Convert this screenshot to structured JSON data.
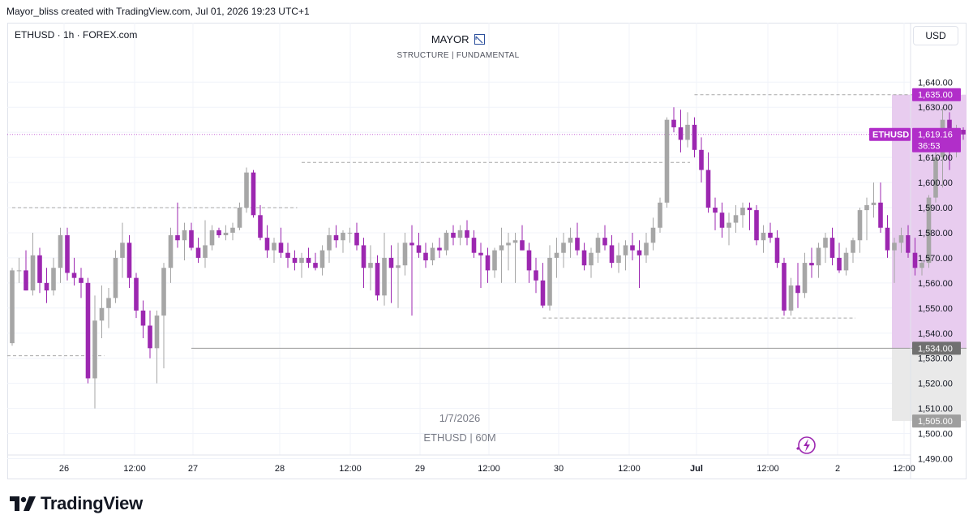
{
  "header": {
    "credit": "Mayor_bliss created with TradingView.com, Jul 01, 2026 19:23 UTC+1"
  },
  "symbol_info": "ETHUSD · 1h · FOREX.com",
  "currency_button": "USD",
  "indicator": {
    "title": "MAYOR",
    "subtitle": "STRUCTURE  |  FUNDAMENTAL"
  },
  "watermark": {
    "date": "1/7/2026",
    "symbol": "ETHUSD | 60M"
  },
  "logo_text": "TradingView",
  "colors": {
    "bull": "#a6a6a6",
    "bear": "#9c27b0",
    "zone_pink": "#e7c9ee",
    "zone_gray": "#e8e8e8",
    "accent": "#b12ec9",
    "dark_tag": "#707070"
  },
  "chart_data": {
    "type": "candlestick",
    "title": "",
    "ylim": [
      1485,
      1645
    ],
    "y_ticks": [
      "1,490.00",
      "1,500.00",
      "1,510.00",
      "1,520.00",
      "1,530.00",
      "1,540.00",
      "1,550.00",
      "1,560.00",
      "1,570.00",
      "1,580.00",
      "1,590.00",
      "1,600.00",
      "1,610.00",
      "1,620.00",
      "1,630.00",
      "1,640.00"
    ],
    "x_ticks": [
      "26",
      "12:00",
      "27",
      "28",
      "12:00",
      "29",
      "12:00",
      "30",
      "12:00",
      "Jul",
      "12:00",
      "2",
      "12:00"
    ],
    "last_price": {
      "label": "ETHUSD",
      "value": "1,619.16",
      "countdown": "36:53",
      "price": 1619.16
    },
    "price_tags": [
      {
        "value": "1,635.00",
        "price": 1635,
        "style": "accent"
      },
      {
        "value": "1,534.00",
        "price": 1534,
        "style": "dark"
      },
      {
        "value": "1,505.00",
        "price": 1505,
        "style": "gray"
      }
    ],
    "zones": [
      {
        "name": "premium-zone",
        "start_index": 128,
        "end_index": 141,
        "top": 1635,
        "bottom": 1534
      },
      {
        "name": "discount-zone",
        "start_index": 128,
        "end_index": 141,
        "top": 1534,
        "bottom": 1505
      }
    ],
    "levels": [
      {
        "name": "level-1531",
        "price": 1531,
        "start_index": -1,
        "end_index": 13,
        "style": "dashed"
      },
      {
        "name": "level-1590",
        "price": 1590,
        "start_index": 0,
        "end_index": 41,
        "style": "dashed"
      },
      {
        "name": "level-1608",
        "price": 1608,
        "start_index": 42,
        "end_index": 98,
        "style": "dashed"
      },
      {
        "name": "level-1546",
        "price": 1546,
        "start_index": 77,
        "end_index": 122,
        "style": "dashed"
      },
      {
        "name": "level-1635",
        "price": 1635,
        "start_index": 99,
        "end_index": 135,
        "style": "dashed"
      },
      {
        "name": "level-1534",
        "price": 1534,
        "start_index": 26,
        "end_index": 141,
        "style": "solid"
      }
    ],
    "candles": [
      [
        1536,
        1566,
        1535,
        1565
      ],
      [
        1565,
        1570,
        1560,
        1565
      ],
      [
        1565,
        1573,
        1557,
        1557
      ],
      [
        1557,
        1580,
        1555,
        1571
      ],
      [
        1571,
        1574,
        1556,
        1560
      ],
      [
        1560,
        1566,
        1552,
        1557
      ],
      [
        1557,
        1570,
        1555,
        1566
      ],
      [
        1566,
        1582,
        1560,
        1579
      ],
      [
        1579,
        1582,
        1561,
        1564
      ],
      [
        1564,
        1570,
        1559,
        1562
      ],
      [
        1562,
        1566,
        1554,
        1560
      ],
      [
        1560,
        1562,
        1520,
        1522
      ],
      [
        1522,
        1555,
        1510,
        1545
      ],
      [
        1545,
        1559,
        1538,
        1550
      ],
      [
        1550,
        1558,
        1542,
        1554
      ],
      [
        1554,
        1573,
        1552,
        1570
      ],
      [
        1570,
        1584,
        1562,
        1576
      ],
      [
        1576,
        1579,
        1558,
        1562
      ],
      [
        1562,
        1564,
        1546,
        1549
      ],
      [
        1549,
        1553,
        1538,
        1543
      ],
      [
        1543,
        1549,
        1530,
        1534
      ],
      [
        1534,
        1549,
        1520,
        1547
      ],
      [
        1547,
        1568,
        1526,
        1566
      ],
      [
        1566,
        1582,
        1560,
        1579
      ],
      [
        1579,
        1592,
        1574,
        1577
      ],
      [
        1577,
        1584,
        1569,
        1581
      ],
      [
        1581,
        1584,
        1573,
        1574
      ],
      [
        1574,
        1578,
        1568,
        1570
      ],
      [
        1570,
        1585,
        1566,
        1575
      ],
      [
        1575,
        1583,
        1573,
        1581
      ],
      [
        1581,
        1582,
        1578,
        1579
      ],
      [
        1579,
        1583,
        1577,
        1580
      ],
      [
        1580,
        1584,
        1577,
        1582
      ],
      [
        1582,
        1592,
        1581,
        1590
      ],
      [
        1590,
        1606,
        1588,
        1604
      ],
      [
        1604,
        1605,
        1586,
        1587
      ],
      [
        1587,
        1591,
        1577,
        1578
      ],
      [
        1578,
        1583,
        1570,
        1573
      ],
      [
        1573,
        1578,
        1568,
        1576
      ],
      [
        1576,
        1582,
        1570,
        1572
      ],
      [
        1572,
        1576,
        1566,
        1570
      ],
      [
        1570,
        1573,
        1565,
        1568
      ],
      [
        1568,
        1572,
        1562,
        1570
      ],
      [
        1570,
        1574,
        1566,
        1568
      ],
      [
        1568,
        1572,
        1565,
        1566
      ],
      [
        1566,
        1575,
        1563,
        1573
      ],
      [
        1573,
        1582,
        1568,
        1579
      ],
      [
        1579,
        1583,
        1574,
        1577
      ],
      [
        1577,
        1581,
        1572,
        1580
      ],
      [
        1580,
        1582,
        1576,
        1580
      ],
      [
        1580,
        1584,
        1573,
        1575
      ],
      [
        1575,
        1578,
        1558,
        1566
      ],
      [
        1566,
        1575,
        1557,
        1568
      ],
      [
        1568,
        1571,
        1553,
        1555
      ],
      [
        1555,
        1580,
        1551,
        1570
      ],
      [
        1570,
        1575,
        1552,
        1566
      ],
      [
        1566,
        1576,
        1550,
        1567
      ],
      [
        1567,
        1580,
        1563,
        1576
      ],
      [
        1576,
        1583,
        1547,
        1575
      ],
      [
        1575,
        1580,
        1570,
        1572
      ],
      [
        1572,
        1576,
        1566,
        1569
      ],
      [
        1569,
        1576,
        1567,
        1574
      ],
      [
        1574,
        1578,
        1570,
        1573
      ],
      [
        1573,
        1581,
        1571,
        1580
      ],
      [
        1580,
        1583,
        1575,
        1578
      ],
      [
        1578,
        1583,
        1575,
        1581
      ],
      [
        1581,
        1585,
        1575,
        1578
      ],
      [
        1578,
        1581,
        1570,
        1572
      ],
      [
        1572,
        1576,
        1558,
        1571
      ],
      [
        1571,
        1574,
        1560,
        1565
      ],
      [
        1565,
        1574,
        1562,
        1573
      ],
      [
        1573,
        1582,
        1560,
        1575
      ],
      [
        1575,
        1580,
        1565,
        1576
      ],
      [
        1576,
        1580,
        1560,
        1577
      ],
      [
        1577,
        1583,
        1573,
        1573
      ],
      [
        1573,
        1576,
        1560,
        1565
      ],
      [
        1565,
        1570,
        1556,
        1561
      ],
      [
        1561,
        1568,
        1550,
        1551
      ],
      [
        1551,
        1575,
        1549,
        1570
      ],
      [
        1570,
        1578,
        1562,
        1572
      ],
      [
        1572,
        1580,
        1566,
        1576
      ],
      [
        1576,
        1582,
        1570,
        1578
      ],
      [
        1578,
        1584,
        1571,
        1573
      ],
      [
        1573,
        1576,
        1565,
        1567
      ],
      [
        1567,
        1574,
        1562,
        1572
      ],
      [
        1572,
        1580,
        1568,
        1578
      ],
      [
        1578,
        1583,
        1573,
        1575
      ],
      [
        1575,
        1579,
        1566,
        1568
      ],
      [
        1568,
        1576,
        1564,
        1571
      ],
      [
        1571,
        1577,
        1565,
        1575
      ],
      [
        1575,
        1580,
        1569,
        1573
      ],
      [
        1573,
        1577,
        1558,
        1571
      ],
      [
        1571,
        1580,
        1568,
        1576
      ],
      [
        1576,
        1586,
        1573,
        1582
      ],
      [
        1582,
        1594,
        1580,
        1592
      ],
      [
        1592,
        1626,
        1590,
        1625
      ],
      [
        1625,
        1630,
        1620,
        1622
      ],
      [
        1622,
        1629,
        1612,
        1617
      ],
      [
        1617,
        1628,
        1614,
        1623
      ],
      [
        1623,
        1626,
        1610,
        1613
      ],
      [
        1613,
        1618,
        1600,
        1605
      ],
      [
        1605,
        1612,
        1588,
        1590
      ],
      [
        1590,
        1594,
        1581,
        1588
      ],
      [
        1588,
        1592,
        1578,
        1582
      ],
      [
        1582,
        1588,
        1575,
        1584
      ],
      [
        1584,
        1591,
        1580,
        1587
      ],
      [
        1587,
        1592,
        1582,
        1590
      ],
      [
        1590,
        1592,
        1581,
        1589
      ],
      [
        1589,
        1591,
        1575,
        1577
      ],
      [
        1577,
        1583,
        1572,
        1580
      ],
      [
        1580,
        1584,
        1576,
        1578
      ],
      [
        1578,
        1581,
        1566,
        1568
      ],
      [
        1568,
        1570,
        1547,
        1549
      ],
      [
        1549,
        1562,
        1547,
        1559
      ],
      [
        1559,
        1568,
        1550,
        1556
      ],
      [
        1556,
        1572,
        1554,
        1568
      ],
      [
        1568,
        1574,
        1562,
        1567
      ],
      [
        1567,
        1576,
        1562,
        1574
      ],
      [
        1574,
        1580,
        1568,
        1578
      ],
      [
        1578,
        1582,
        1567,
        1570
      ],
      [
        1570,
        1576,
        1564,
        1565
      ],
      [
        1565,
        1574,
        1563,
        1572
      ],
      [
        1572,
        1578,
        1568,
        1577
      ],
      [
        1577,
        1590,
        1572,
        1589
      ],
      [
        1589,
        1594,
        1577,
        1591
      ],
      [
        1591,
        1600,
        1586,
        1592
      ],
      [
        1592,
        1600,
        1580,
        1582
      ],
      [
        1582,
        1587,
        1570,
        1573
      ],
      [
        1573,
        1578,
        1560,
        1576
      ],
      [
        1576,
        1582,
        1572,
        1579
      ],
      [
        1579,
        1583,
        1570,
        1572
      ],
      [
        1572,
        1578,
        1563,
        1566
      ],
      [
        1566,
        1569,
        1563,
        1568
      ],
      [
        1568,
        1595,
        1566,
        1594
      ],
      [
        1594,
        1612,
        1592,
        1610
      ],
      [
        1610,
        1630,
        1598,
        1625
      ],
      [
        1625,
        1628,
        1605,
        1616
      ],
      [
        1616,
        1623,
        1610,
        1621
      ],
      [
        1621,
        1622,
        1617,
        1619.16
      ]
    ]
  }
}
